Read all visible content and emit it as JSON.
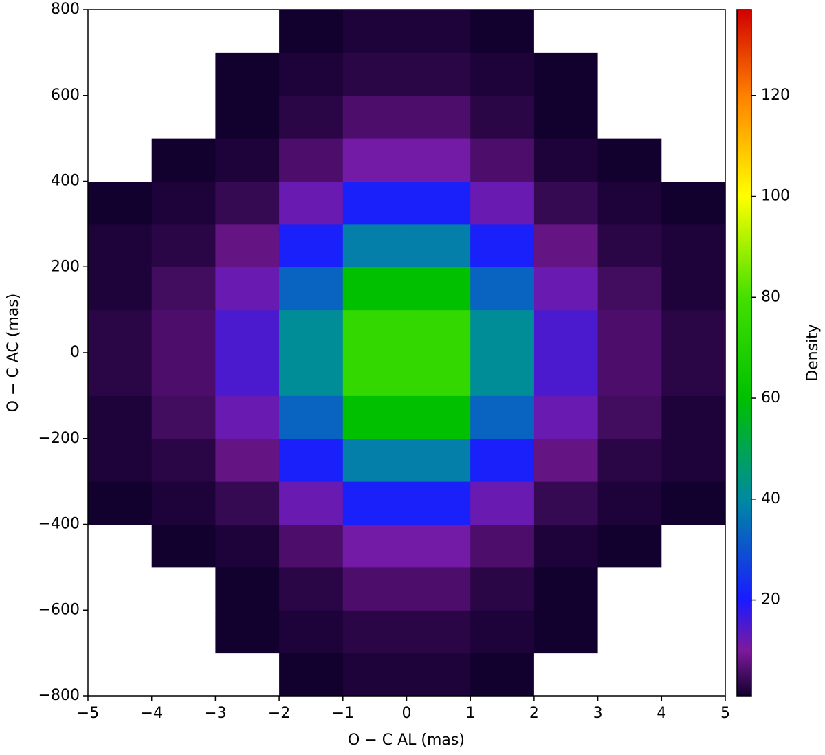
{
  "chart_data": {
    "type": "heatmap",
    "xlabel": "O − C  AL (mas)",
    "ylabel": "O − C  AC (mas)",
    "colorbar_label": "Density",
    "xbins": [
      -5,
      -4,
      -3,
      -2,
      -1,
      0,
      1,
      2,
      3,
      4,
      5
    ],
    "ybins": [
      -800,
      -700,
      -600,
      -500,
      -400,
      -300,
      -200,
      -100,
      0,
      100,
      200,
      300,
      400,
      500,
      600,
      700,
      800
    ],
    "z": [
      [
        0,
        0,
        0,
        1,
        2,
        2,
        1,
        0,
        0,
        0
      ],
      [
        0,
        0,
        1,
        2,
        3,
        3,
        2,
        1,
        0,
        0
      ],
      [
        0,
        0,
        1,
        3,
        6,
        6,
        3,
        1,
        0,
        0
      ],
      [
        0,
        1,
        2,
        6,
        11,
        11,
        6,
        2,
        1,
        0
      ],
      [
        1,
        2,
        4,
        12,
        21,
        21,
        12,
        4,
        2,
        1
      ],
      [
        2,
        3,
        8,
        21,
        38,
        38,
        21,
        8,
        3,
        2
      ],
      [
        2,
        5,
        12,
        33,
        60,
        60,
        33,
        12,
        5,
        2
      ],
      [
        3,
        6,
        15,
        41,
        75,
        75,
        41,
        15,
        6,
        3
      ],
      [
        3,
        6,
        15,
        41,
        75,
        75,
        41,
        15,
        6,
        3
      ],
      [
        2,
        5,
        12,
        33,
        60,
        60,
        33,
        12,
        5,
        2
      ],
      [
        2,
        3,
        8,
        21,
        38,
        38,
        21,
        8,
        3,
        2
      ],
      [
        1,
        2,
        4,
        12,
        21,
        21,
        12,
        4,
        2,
        1
      ],
      [
        0,
        1,
        2,
        6,
        11,
        11,
        6,
        2,
        1,
        0
      ],
      [
        0,
        0,
        1,
        3,
        6,
        6,
        3,
        1,
        0,
        0
      ],
      [
        0,
        0,
        1,
        2,
        3,
        3,
        2,
        1,
        0,
        0
      ],
      [
        0,
        0,
        0,
        1,
        2,
        2,
        1,
        0,
        0,
        0
      ]
    ],
    "xlim": [
      -5,
      5
    ],
    "ylim": [
      -800,
      800
    ],
    "clim": [
      1,
      137
    ],
    "xticks": [
      {
        "value": -5,
        "label": "−5"
      },
      {
        "value": -4,
        "label": "−4"
      },
      {
        "value": -3,
        "label": "−3"
      },
      {
        "value": -2,
        "label": "−2"
      },
      {
        "value": -1,
        "label": "−1"
      },
      0,
      1,
      2,
      3,
      4,
      5
    ],
    "yticks": [
      {
        "value": -800,
        "label": "−800"
      },
      {
        "value": -600,
        "label": "−600"
      },
      {
        "value": -400,
        "label": "−400"
      },
      {
        "value": -200,
        "label": "−200"
      },
      0,
      200,
      400,
      600,
      800
    ],
    "cticks": [
      20,
      40,
      60,
      80,
      100,
      120
    ],
    "empty_color": "#ffffff",
    "colormap": [
      {
        "value": 1,
        "color": "#12002e"
      },
      {
        "value": 10,
        "color": "#7d1a9c"
      },
      {
        "value": 20,
        "color": "#1a1aff"
      },
      {
        "value": 40,
        "color": "#008aa0"
      },
      {
        "value": 60,
        "color": "#00c000"
      },
      {
        "value": 80,
        "color": "#44e000"
      },
      {
        "value": 100,
        "color": "#ffff00"
      },
      {
        "value": 120,
        "color": "#ff8000"
      },
      {
        "value": 137,
        "color": "#d00000"
      }
    ]
  }
}
